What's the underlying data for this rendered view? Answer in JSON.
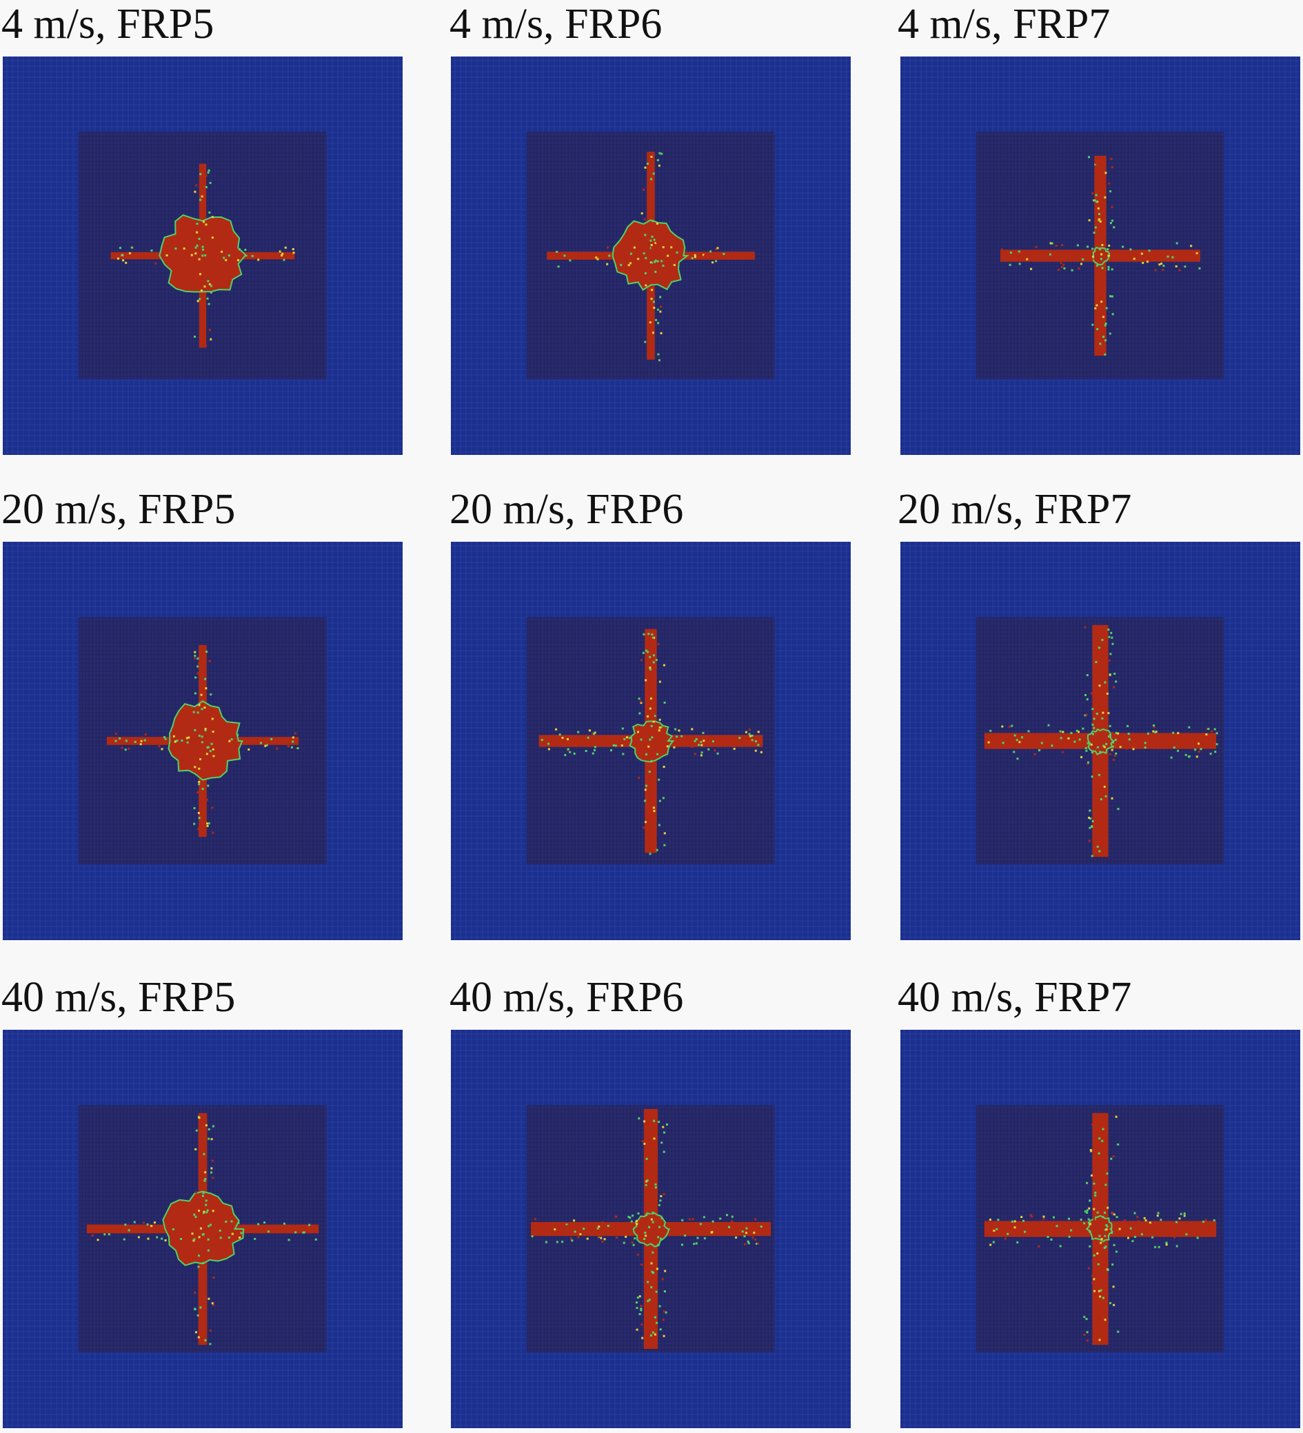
{
  "figure": {
    "panels": [
      {
        "label": "4 m/s, FRP5",
        "velocity_mps": 4,
        "specimen": "FRP5",
        "core_radius": 0.1,
        "arm_length": 0.23,
        "arm_width": 0.018,
        "speckle": 0.15
      },
      {
        "label": "4 m/s, FRP6",
        "velocity_mps": 4,
        "specimen": "FRP6",
        "core_radius": 0.085,
        "arm_length": 0.26,
        "arm_width": 0.02,
        "speckle": 0.2
      },
      {
        "label": "4 m/s, FRP7",
        "velocity_mps": 4,
        "specimen": "FRP7",
        "core_radius": 0.02,
        "arm_length": 0.25,
        "arm_width": 0.03,
        "speckle": 0.35
      },
      {
        "label": "20 m/s, FRP5",
        "velocity_mps": 20,
        "specimen": "FRP5",
        "core_radius": 0.09,
        "arm_length": 0.24,
        "arm_width": 0.02,
        "speckle": 0.3
      },
      {
        "label": "20 m/s, FRP6",
        "velocity_mps": 20,
        "specimen": "FRP6",
        "core_radius": 0.05,
        "arm_length": 0.28,
        "arm_width": 0.03,
        "speckle": 0.5
      },
      {
        "label": "20 m/s, FRP7",
        "velocity_mps": 20,
        "specimen": "FRP7",
        "core_radius": 0.03,
        "arm_length": 0.29,
        "arm_width": 0.04,
        "speckle": 0.6
      },
      {
        "label": "40 m/s, FRP5",
        "velocity_mps": 40,
        "specimen": "FRP5",
        "core_radius": 0.09,
        "arm_length": 0.29,
        "arm_width": 0.022,
        "speckle": 0.35
      },
      {
        "label": "40 m/s, FRP6",
        "velocity_mps": 40,
        "specimen": "FRP6",
        "core_radius": 0.04,
        "arm_length": 0.3,
        "arm_width": 0.035,
        "speckle": 0.6
      },
      {
        "label": "40 m/s, FRP7",
        "velocity_mps": 40,
        "specimen": "FRP7",
        "core_radius": 0.03,
        "arm_length": 0.29,
        "arm_width": 0.04,
        "speckle": 0.65
      }
    ],
    "colors": {
      "background_field": "#1b2f8e",
      "impact_zone": "#2a2a6a",
      "damage": "#b22a14",
      "damage_edge_green": "#4fd36a",
      "damage_edge_yellow": "#e6d43a",
      "mesh_line": "#3a52b0"
    }
  }
}
